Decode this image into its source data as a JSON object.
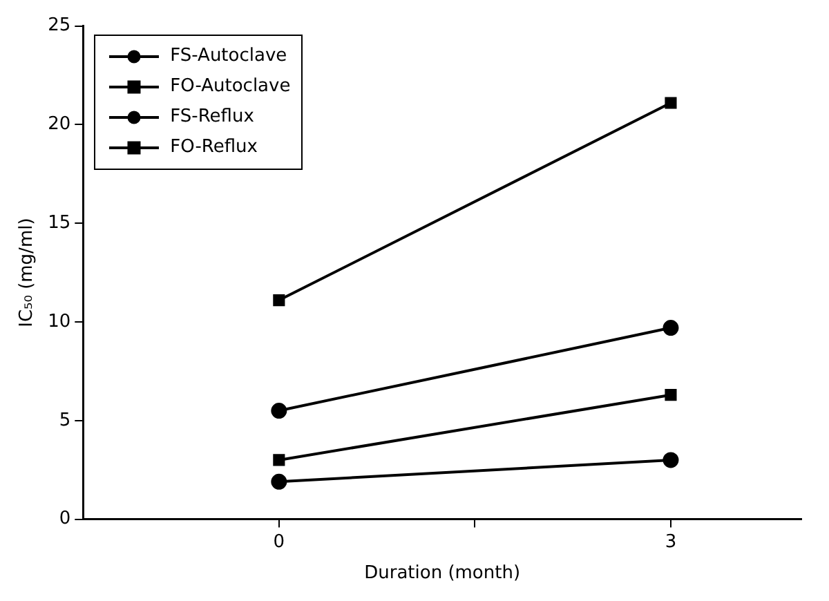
{
  "chart_data": {
    "type": "line",
    "xlabel": "Duration (month)",
    "ylabel": "IC₅₀ (mg/ml)",
    "x": [
      0,
      3
    ],
    "xlim": [
      -1.5,
      4
    ],
    "xticks": [
      0,
      {
        "value": 1.5,
        "label": null
      },
      3
    ],
    "ylim": [
      0,
      25
    ],
    "yticks": [
      0,
      5,
      10,
      15,
      20,
      25
    ],
    "grid": false,
    "legend": "top left",
    "line_style": "solid",
    "series": [
      {
        "name": "FS-Autoclave",
        "color": "#000000",
        "marker": "circle",
        "values": [
          5.5,
          9.7
        ]
      },
      {
        "name": "FO-Autoclave",
        "color": "#000000",
        "marker": "square",
        "values": [
          11.1,
          21.1
        ]
      },
      {
        "name": "FS-Reflux",
        "color": "#000000",
        "marker": "circle",
        "values": [
          1.9,
          3.0
        ]
      },
      {
        "name": "FO-Reflux",
        "color": "#000000",
        "marker": "square",
        "values": [
          3.0,
          6.3
        ]
      }
    ]
  }
}
